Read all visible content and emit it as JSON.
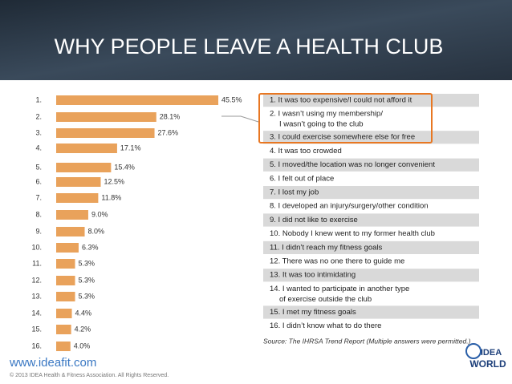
{
  "title": "WHY PEOPLE LEAVE A HEALTH CLUB",
  "chart_data": {
    "type": "bar",
    "categories": [
      "1.",
      "2.",
      "3.",
      "4.",
      "5.",
      "6.",
      "7.",
      "8.",
      "9.",
      "10.",
      "11.",
      "12.",
      "13.",
      "14.",
      "15.",
      "16."
    ],
    "values": [
      45.5,
      28.1,
      27.6,
      17.1,
      15.4,
      12.5,
      11.8,
      9.0,
      8.0,
      6.3,
      5.3,
      5.3,
      5.3,
      4.4,
      4.2,
      4.0
    ],
    "value_labels": [
      "45.5%",
      "28.1%",
      "27.6%",
      "17.1%",
      "15.4%",
      "12.5%",
      "11.8%",
      "9.0%",
      "8.0%",
      "6.3%",
      "5.3%",
      "5.3%",
      "5.3%",
      "4.4%",
      "4.2%",
      "4.0%"
    ],
    "color": "#e9a25b"
  },
  "table": {
    "rows": [
      [
        "1.  It was too expensive/I could not afford it"
      ],
      [
        "2.  I wasn’t using my membership/",
        "I wasn’t going to the club"
      ],
      [
        "3.  I could exercise somewhere else for free"
      ],
      [
        "4.  It was too crowded"
      ],
      [
        "5.  I moved/the location was no longer convenient"
      ],
      [
        "6.  I felt out of place"
      ],
      [
        "7.  I lost my job"
      ],
      [
        "8.  I developed an injury/surgery/other condition"
      ],
      [
        "9.  I did not like to exercise"
      ],
      [
        "10.  Nobody I knew went to my former health club"
      ],
      [
        "11.  I didn’t reach my fitness goals"
      ],
      [
        "12.  There was no one there to guide me"
      ],
      [
        "13.  It was too intimidating"
      ],
      [
        "14.  I wanted to participate in another type",
        "of exercise outside the club"
      ],
      [
        "15.  I met my fitness goals"
      ],
      [
        "16.  I didn’t know what to do there"
      ]
    ]
  },
  "source": "Source: The IHRSA Trend Report (Multiple answers were permitted.)",
  "website": "www.ideafit.com",
  "copyright": "© 2013 IDEA Health & Fitness Association. All Rights Reserved.",
  "logo": [
    "IDEA",
    "WORLD"
  ]
}
